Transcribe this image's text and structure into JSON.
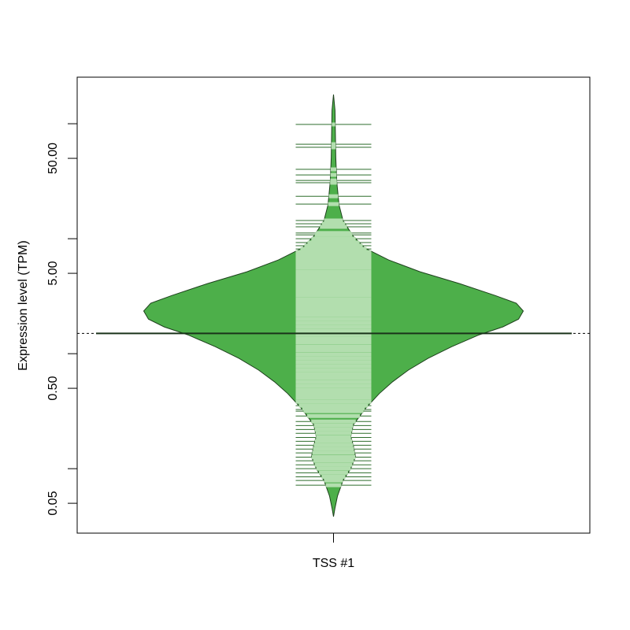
{
  "chart_data": {
    "type": "beanplot",
    "ylabel": "Expression level (TPM)",
    "categories": [
      "TSS #1"
    ],
    "log_y": true,
    "ylim": [
      0.0275,
      254
    ],
    "yticks": [
      {
        "value": 0.05,
        "label": "0.05"
      },
      {
        "value": 0.5,
        "label": "0.50"
      },
      {
        "value": 5,
        "label": "5.00"
      },
      {
        "value": 50,
        "label": "50.00"
      }
    ],
    "yminorticks": [
      0.1,
      1,
      10,
      100
    ],
    "color": "#4daf4a",
    "mean": 1.5,
    "density": {
      "y": [
        179.5,
        131,
        50.8,
        31.6,
        19.7,
        14.4,
        10.5,
        8.28,
        6.53,
        5.16,
        4.07,
        3.21,
        2.75,
        2.35,
        2.0,
        1.71,
        1.46,
        1.15,
        0.91,
        0.72,
        0.57,
        0.45,
        0.33,
        0.24,
        0.19,
        0.16,
        0.127,
        0.1,
        0.079,
        0.058,
        0.0455,
        0.0383
      ],
      "width": [
        0,
        0.008,
        0.012,
        0.017,
        0.029,
        0.05,
        0.104,
        0.166,
        0.29,
        0.456,
        0.664,
        0.851,
        0.963,
        1,
        0.975,
        0.892,
        0.768,
        0.622,
        0.498,
        0.394,
        0.311,
        0.241,
        0.166,
        0.104,
        0.091,
        0.104,
        0.116,
        0.091,
        0.05,
        0.021,
        0.008,
        0
      ]
    },
    "observations": [
      98.6,
      66.4,
      62.4,
      40.1,
      35.9,
      32.1,
      30.7,
      23.4,
      20.0,
      14.4,
      13.5,
      12.7,
      11.2,
      10.8,
      10.0,
      9.25,
      8.69,
      8.15,
      7.65,
      7.19,
      7.08,
      6.54,
      6.05,
      5.59,
      5.16,
      4.77,
      4.41,
      4.08,
      3.77,
      3.48,
      3.22,
      2.97,
      2.75,
      2.54,
      2.35,
      2.17,
      2.0,
      1.85,
      1.71,
      1.58,
      1.46,
      1.35,
      1.25,
      1.15,
      1.07,
      0.985,
      0.91,
      0.841,
      0.777,
      0.718,
      0.664,
      0.614,
      0.567,
      0.524,
      0.484,
      0.448,
      0.414,
      0.382,
      0.353,
      0.327,
      0.316,
      0.287,
      0.257,
      0.237,
      0.219,
      0.203,
      0.187,
      0.173,
      0.16,
      0.148,
      0.137,
      0.126,
      0.117,
      0.108,
      0.1,
      0.092,
      0.085,
      0.079,
      0.0718
    ]
  }
}
